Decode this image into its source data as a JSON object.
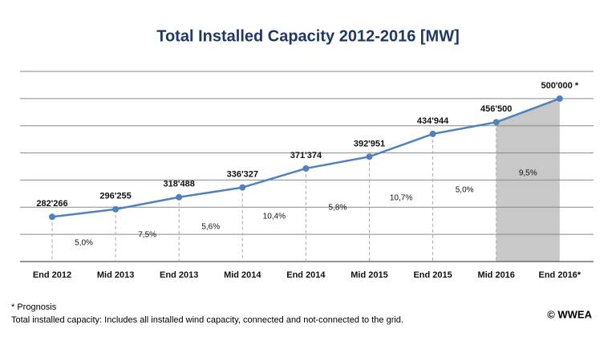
{
  "chart_data": {
    "type": "line",
    "title": "Total Installed Capacity 2012-2016 [MW]",
    "categories": [
      "End 2012",
      "Mid 2013",
      "End 2013",
      "Mid 2014",
      "End 2014",
      "Mid 2015",
      "End 2015",
      "Mid 2016",
      "End 2016*"
    ],
    "series": [
      {
        "color": "#4f81bd",
        "values": [
          282266,
          296255,
          318488,
          336327,
          371374,
          392951,
          434944,
          456500,
          500000
        ],
        "value_labels": [
          "282'266",
          "296'255",
          "318'488",
          "336'327",
          "371'374",
          "392'951",
          "434'944",
          "456'500",
          "500'000 *"
        ]
      }
    ],
    "annotations": [
      "5,0%",
      "7,5%",
      "5,6%",
      "10,4%",
      "5,8%",
      "10,7%",
      "5,0%",
      "9,5%"
    ],
    "forecast_color": "#c8c8c8",
    "ylim": [
      200000,
      550000
    ],
    "yticks": [
      200000,
      250000,
      300000,
      350000,
      400000,
      450000,
      500000,
      550000
    ],
    "grid": true,
    "footnotes": [
      "* Prognosis",
      "Total installed capacity: Includes all installed wind capacity, connected and not-connected to the grid."
    ],
    "source": "© WWEA"
  }
}
